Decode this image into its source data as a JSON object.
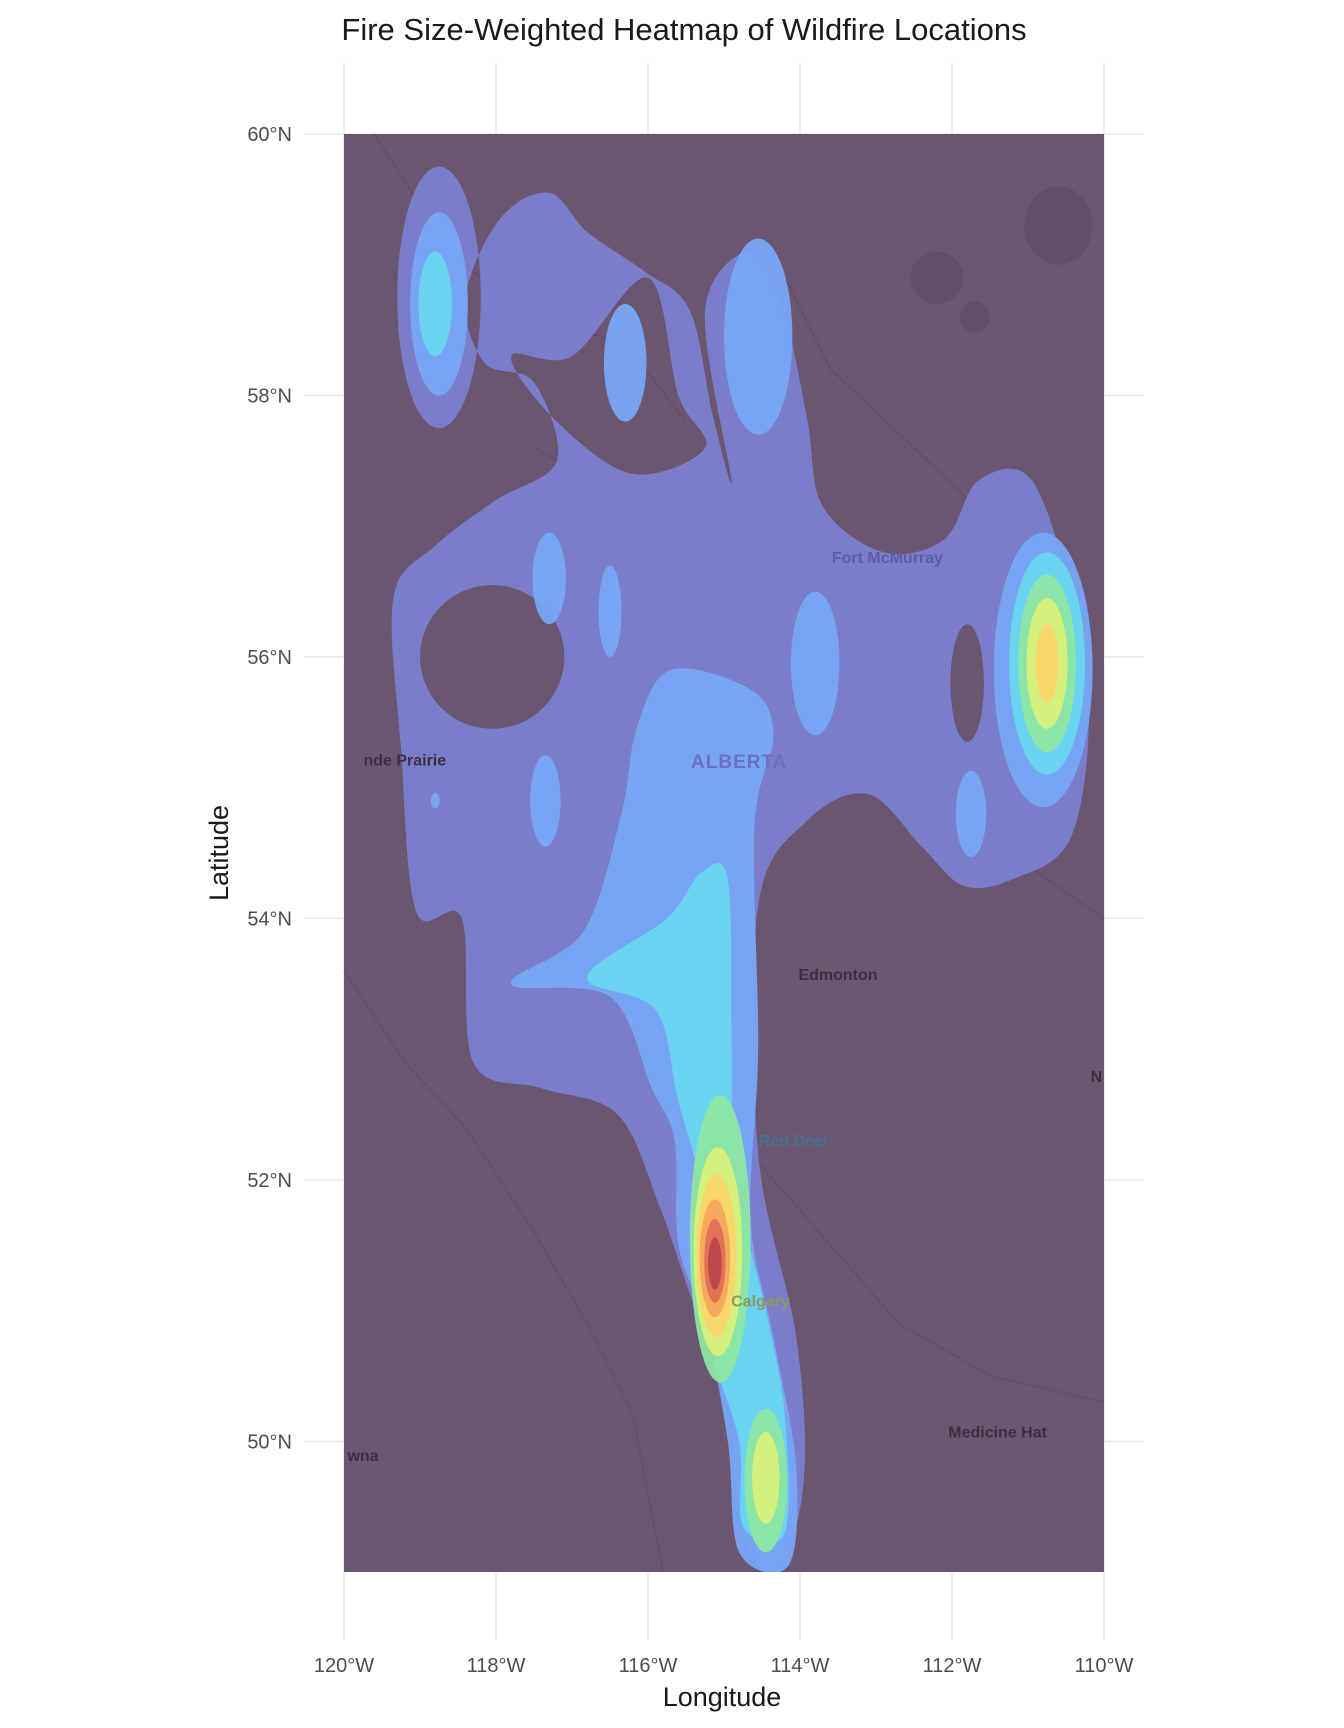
{
  "chart_data": {
    "type": "heatmap",
    "title": "Fire Size-Weighted Heatmap of Wildfire Locations",
    "xlabel": "Longitude",
    "ylabel": "Latitude",
    "xlim": [
      -120,
      -110
    ],
    "ylim": [
      49,
      60
    ],
    "x_ticks": [
      {
        "value": -120,
        "label": "120°W"
      },
      {
        "value": -118,
        "label": "118°W"
      },
      {
        "value": -116,
        "label": "116°W"
      },
      {
        "value": -114,
        "label": "114°W"
      },
      {
        "value": -112,
        "label": "112°W"
      },
      {
        "value": -110,
        "label": "110°W"
      }
    ],
    "y_ticks": [
      {
        "value": 50,
        "label": "50°N"
      },
      {
        "value": 52,
        "label": "52°N"
      },
      {
        "value": 54,
        "label": "54°N"
      },
      {
        "value": 56,
        "label": "56°N"
      },
      {
        "value": 58,
        "label": "58°N"
      },
      {
        "value": 60,
        "label": "60°N"
      }
    ],
    "grid": true,
    "basemap_tint": "#6b5672",
    "palette": [
      "#7b7fcf",
      "#78a6f5",
      "#69d6ee",
      "#8de6a2",
      "#d9f07a",
      "#fbd56a",
      "#f5a55c",
      "#e06e55",
      "#b8464a"
    ],
    "density_hotspots": [
      {
        "lon": -115.1,
        "lat": 51.4,
        "intensity": 1.0
      },
      {
        "lon": -114.45,
        "lat": 49.7,
        "intensity": 0.55
      },
      {
        "lon": -110.75,
        "lat": 55.95,
        "intensity": 0.6
      },
      {
        "lon": -115.3,
        "lat": 53.7,
        "intensity": 0.4
      },
      {
        "lon": -118.8,
        "lat": 58.75,
        "intensity": 0.3
      },
      {
        "lon": -114.55,
        "lat": 58.45,
        "intensity": 0.28
      },
      {
        "lon": -116.3,
        "lat": 58.2,
        "intensity": 0.2
      },
      {
        "lon": -113.75,
        "lat": 55.95,
        "intensity": 0.2
      },
      {
        "lon": -117.3,
        "lat": 56.6,
        "intensity": 0.18
      },
      {
        "lon": -116.5,
        "lat": 56.35,
        "intensity": 0.16
      },
      {
        "lon": -117.35,
        "lat": 54.9,
        "intensity": 0.18
      },
      {
        "lon": -111.75,
        "lat": 54.8,
        "intensity": 0.16
      }
    ],
    "map_labels": [
      {
        "text": "Fort McMurray",
        "lon": -112.85,
        "lat": 56.72,
        "color": "#5a5fa8"
      },
      {
        "text": "ALBERTA",
        "lon": -114.8,
        "lat": 55.15,
        "color": "#6a6fc0"
      },
      {
        "text": "nde Prairie",
        "lon": -119.2,
        "lat": 55.17,
        "color": "#3c3040"
      },
      {
        "text": "Edmonton",
        "lon": -113.5,
        "lat": 53.53,
        "color": "#3c3040"
      },
      {
        "text": "Red Deer",
        "lon": -114.08,
        "lat": 52.26,
        "color": "#47708a"
      },
      {
        "text": "Calgary",
        "lon": -114.52,
        "lat": 51.03,
        "color": "#8a9a5a"
      },
      {
        "text": "Medicine Hat",
        "lon": -111.4,
        "lat": 50.03,
        "color": "#3c3040"
      },
      {
        "text": "wna",
        "lon": -119.75,
        "lat": 49.85,
        "color": "#3c3040"
      },
      {
        "text": "N",
        "lon": -110.1,
        "lat": 52.75,
        "color": "#3c3040"
      }
    ]
  }
}
